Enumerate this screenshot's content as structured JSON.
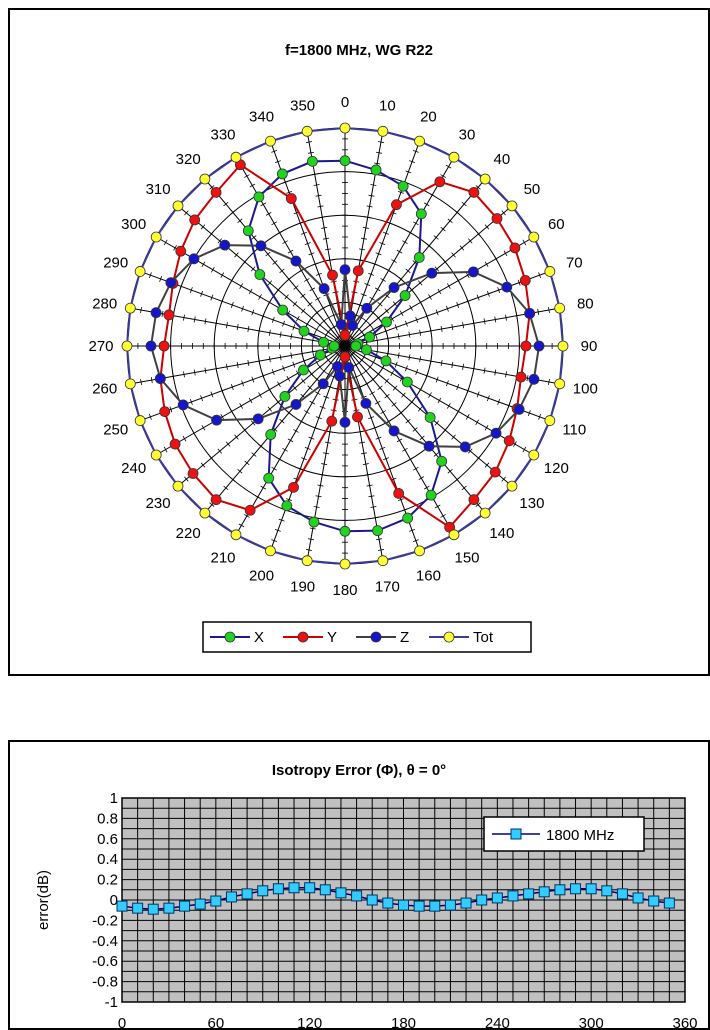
{
  "chart_data": [
    {
      "type": "polar-line",
      "title": "f=1800 MHz, WG R22",
      "angle_ticks": [
        "0",
        "10",
        "20",
        "30",
        "40",
        "50",
        "60",
        "70",
        "80",
        "90",
        "100",
        "110",
        "120",
        "130",
        "140",
        "150",
        "160",
        "170",
        "180",
        "190",
        "200",
        "210",
        "220",
        "230",
        "240",
        "250",
        "260",
        "270",
        "280",
        "290",
        "300",
        "310",
        "320",
        "330",
        "340",
        "350"
      ],
      "theta_deg": [
        0,
        10,
        20,
        30,
        40,
        50,
        60,
        70,
        80,
        90,
        100,
        110,
        120,
        130,
        140,
        150,
        160,
        170,
        180,
        190,
        200,
        210,
        220,
        230,
        240,
        250,
        260,
        270,
        280,
        290,
        300,
        310,
        320,
        330,
        340,
        350
      ],
      "radial_range": [
        0,
        1
      ],
      "radial_rings": 5,
      "grid": true,
      "legend_position": "bottom",
      "series": [
        {
          "name": "X",
          "color": "#1a1a8c",
          "marker_color": "#1fd31f",
          "values": [
            0.85,
            0.82,
            0.78,
            0.7,
            0.53,
            0.36,
            0.22,
            0.12,
            0.06,
            0.05,
            0.1,
            0.2,
            0.33,
            0.51,
            0.69,
            0.79,
            0.84,
            0.86,
            0.85,
            0.82,
            0.78,
            0.7,
            0.53,
            0.36,
            0.22,
            0.12,
            0.06,
            0.05,
            0.1,
            0.2,
            0.33,
            0.51,
            0.69,
            0.79,
            0.84,
            0.86
          ]
        },
        {
          "name": "Y",
          "color": "#cc0000",
          "marker_color": "#ee1111",
          "values": [
            0.05,
            0.35,
            0.69,
            0.87,
            0.92,
            0.91,
            0.9,
            0.88,
            0.86,
            0.83,
            0.82,
            0.84,
            0.87,
            0.9,
            0.92,
            0.96,
            0.72,
            0.33,
            0.05,
            0.35,
            0.69,
            0.87,
            0.92,
            0.91,
            0.9,
            0.88,
            0.86,
            0.83,
            0.82,
            0.84,
            0.87,
            0.9,
            0.92,
            0.96,
            0.72,
            0.33
          ]
        },
        {
          "name": "Z",
          "color": "#404040",
          "marker_color": "#1515cc",
          "values": [
            0.35,
            0.14,
            0.1,
            0.2,
            0.35,
            0.52,
            0.68,
            0.79,
            0.86,
            0.89,
            0.88,
            0.85,
            0.8,
            0.72,
            0.6,
            0.45,
            0.28,
            0.1,
            0.35,
            0.14,
            0.1,
            0.2,
            0.35,
            0.52,
            0.68,
            0.79,
            0.86,
            0.89,
            0.88,
            0.85,
            0.8,
            0.72,
            0.6,
            0.45,
            0.28,
            0.1
          ]
        },
        {
          "name": "Tot",
          "color": "#3a3a9a",
          "marker_color": "#ffff33",
          "values": [
            1,
            1,
            1,
            1,
            1,
            1,
            1,
            1,
            1,
            1,
            1,
            1,
            1,
            1,
            1,
            1,
            1,
            1,
            1,
            1,
            1,
            1,
            1,
            1,
            1,
            1,
            1,
            1,
            1,
            1,
            1,
            1,
            1,
            1,
            1,
            1
          ]
        }
      ]
    },
    {
      "type": "line",
      "title": "Isotropy Error (Φ), θ = 0°",
      "xlabel": "",
      "ylabel": "error(dB)",
      "xlim": [
        0,
        360
      ],
      "ylim": [
        -1,
        1
      ],
      "x_ticks": [
        "0",
        "60",
        "120",
        "180",
        "240",
        "300",
        "360"
      ],
      "y_ticks": [
        "1",
        "0.8",
        "0.6",
        "0.4",
        "0.2",
        "0",
        "-0.2",
        "-0.4",
        "-0.6",
        "-0.8",
        "-1"
      ],
      "grid": true,
      "legend_position": "top-right",
      "x": [
        0,
        10,
        20,
        30,
        40,
        50,
        60,
        70,
        80,
        90,
        100,
        110,
        120,
        130,
        140,
        150,
        160,
        170,
        180,
        190,
        200,
        210,
        220,
        230,
        240,
        250,
        260,
        270,
        280,
        290,
        300,
        310,
        320,
        330,
        340,
        350
      ],
      "series": [
        {
          "name": "1800 MHz",
          "color": "#000080",
          "marker_color": "#33ccff",
          "values": [
            -0.06,
            -0.08,
            -0.09,
            -0.08,
            -0.06,
            -0.04,
            -0.01,
            0.03,
            0.06,
            0.09,
            0.11,
            0.12,
            0.12,
            0.1,
            0.07,
            0.04,
            0.0,
            -0.03,
            -0.05,
            -0.06,
            -0.06,
            -0.05,
            -0.03,
            0.0,
            0.02,
            0.04,
            0.06,
            0.08,
            0.1,
            0.11,
            0.11,
            0.09,
            0.06,
            0.02,
            -0.01,
            -0.03
          ]
        }
      ]
    }
  ]
}
